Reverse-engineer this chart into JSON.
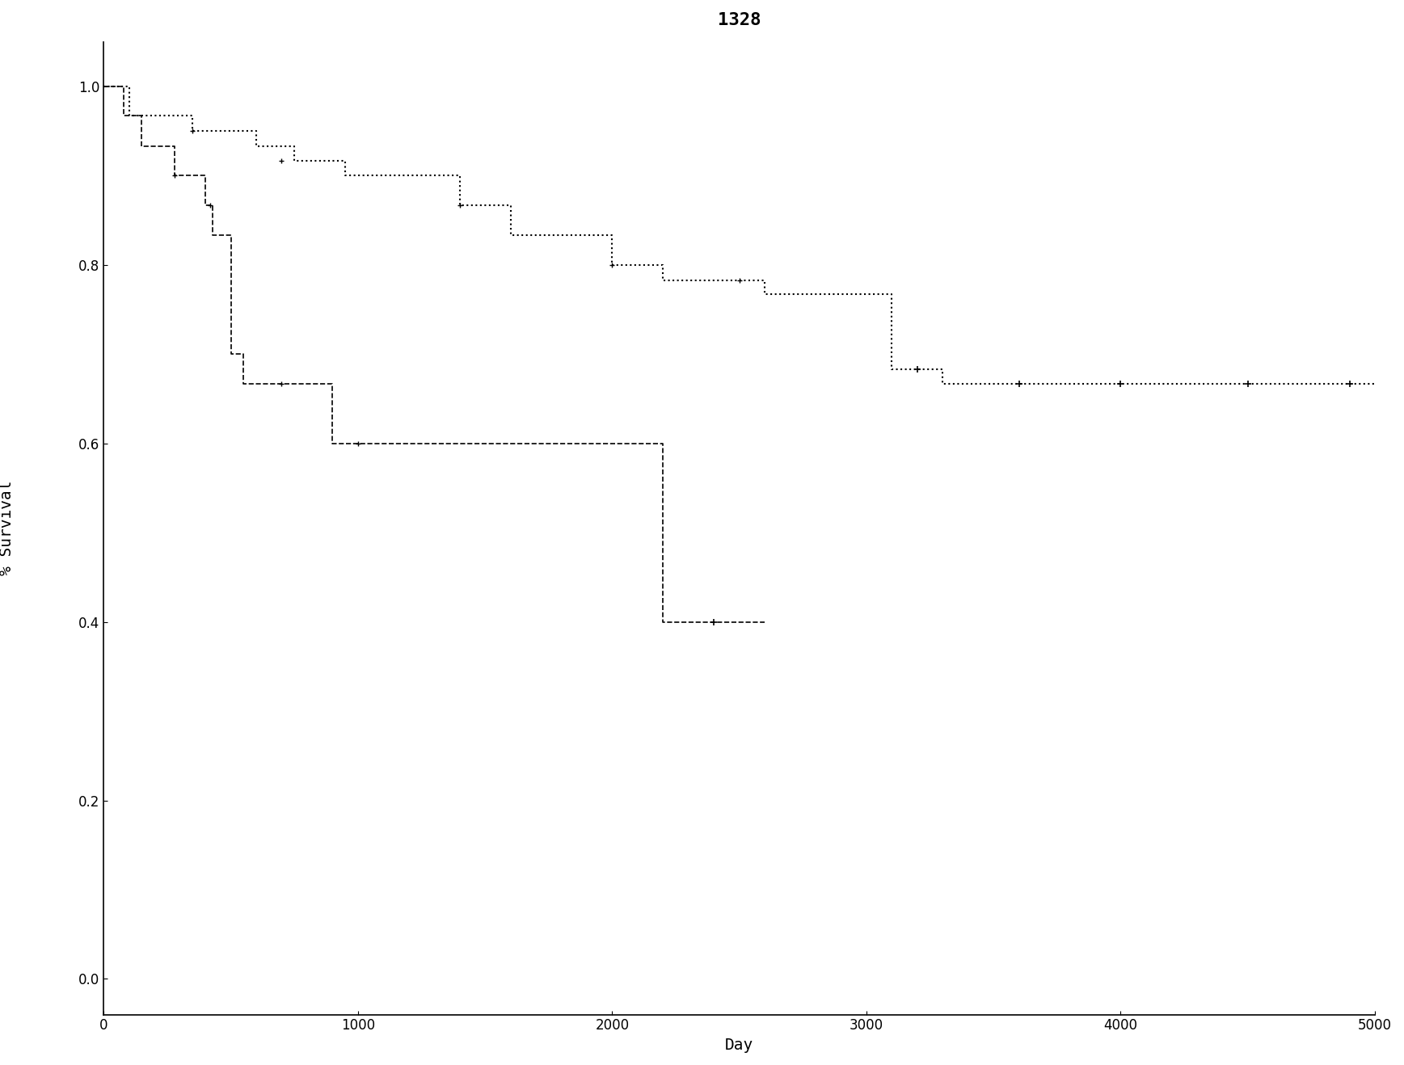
{
  "title": "1328",
  "xlabel": "Day",
  "ylabel": "% Survival",
  "xlim": [
    0,
    5000
  ],
  "ylim": [
    -0.04,
    1.05
  ],
  "xticks": [
    0,
    1000,
    2000,
    3000,
    4000,
    5000
  ],
  "yticks": [
    0.0,
    0.2,
    0.4,
    0.6,
    0.8,
    1.0
  ],
  "background_color": "#ffffff",
  "curve1": {
    "color": "#000000",
    "linestyle": "dashed",
    "steps": [
      [
        0,
        1.0
      ],
      [
        50,
        1.0
      ],
      [
        80,
        0.967
      ],
      [
        100,
        0.967
      ],
      [
        150,
        0.933
      ],
      [
        200,
        0.933
      ],
      [
        280,
        0.9
      ],
      [
        350,
        0.9
      ],
      [
        400,
        0.867
      ],
      [
        420,
        0.867
      ],
      [
        430,
        0.833
      ],
      [
        500,
        0.7
      ],
      [
        520,
        0.7
      ],
      [
        550,
        0.667
      ],
      [
        700,
        0.667
      ],
      [
        900,
        0.6
      ],
      [
        950,
        0.6
      ],
      [
        1000,
        0.6
      ],
      [
        2100,
        0.6
      ],
      [
        2200,
        0.4
      ],
      [
        2500,
        0.4
      ],
      [
        2600,
        0.4
      ]
    ],
    "censors": [
      [
        2400,
        0.4
      ]
    ]
  },
  "curve2": {
    "color": "#000000",
    "linestyle": "dotted",
    "steps": [
      [
        0,
        1.0
      ],
      [
        30,
        1.0
      ],
      [
        100,
        0.967
      ],
      [
        200,
        0.967
      ],
      [
        350,
        0.95
      ],
      [
        500,
        0.95
      ],
      [
        600,
        0.933
      ],
      [
        700,
        0.933
      ],
      [
        750,
        0.917
      ],
      [
        900,
        0.917
      ],
      [
        950,
        0.9
      ],
      [
        1100,
        0.9
      ],
      [
        1400,
        0.867
      ],
      [
        1500,
        0.867
      ],
      [
        1600,
        0.833
      ],
      [
        1800,
        0.833
      ],
      [
        2000,
        0.8
      ],
      [
        2100,
        0.8
      ],
      [
        2200,
        0.783
      ],
      [
        2500,
        0.783
      ],
      [
        2600,
        0.767
      ],
      [
        3000,
        0.767
      ],
      [
        3100,
        0.683
      ],
      [
        3200,
        0.683
      ],
      [
        3300,
        0.667
      ],
      [
        5000,
        0.667
      ]
    ],
    "censors": [
      [
        3200,
        0.683
      ],
      [
        3600,
        0.667
      ],
      [
        4000,
        0.667
      ],
      [
        4500,
        0.667
      ],
      [
        4900,
        0.667
      ]
    ]
  },
  "title_fontsize": 16,
  "title_fontweight": "bold",
  "label_fontsize": 14,
  "tick_fontsize": 12
}
